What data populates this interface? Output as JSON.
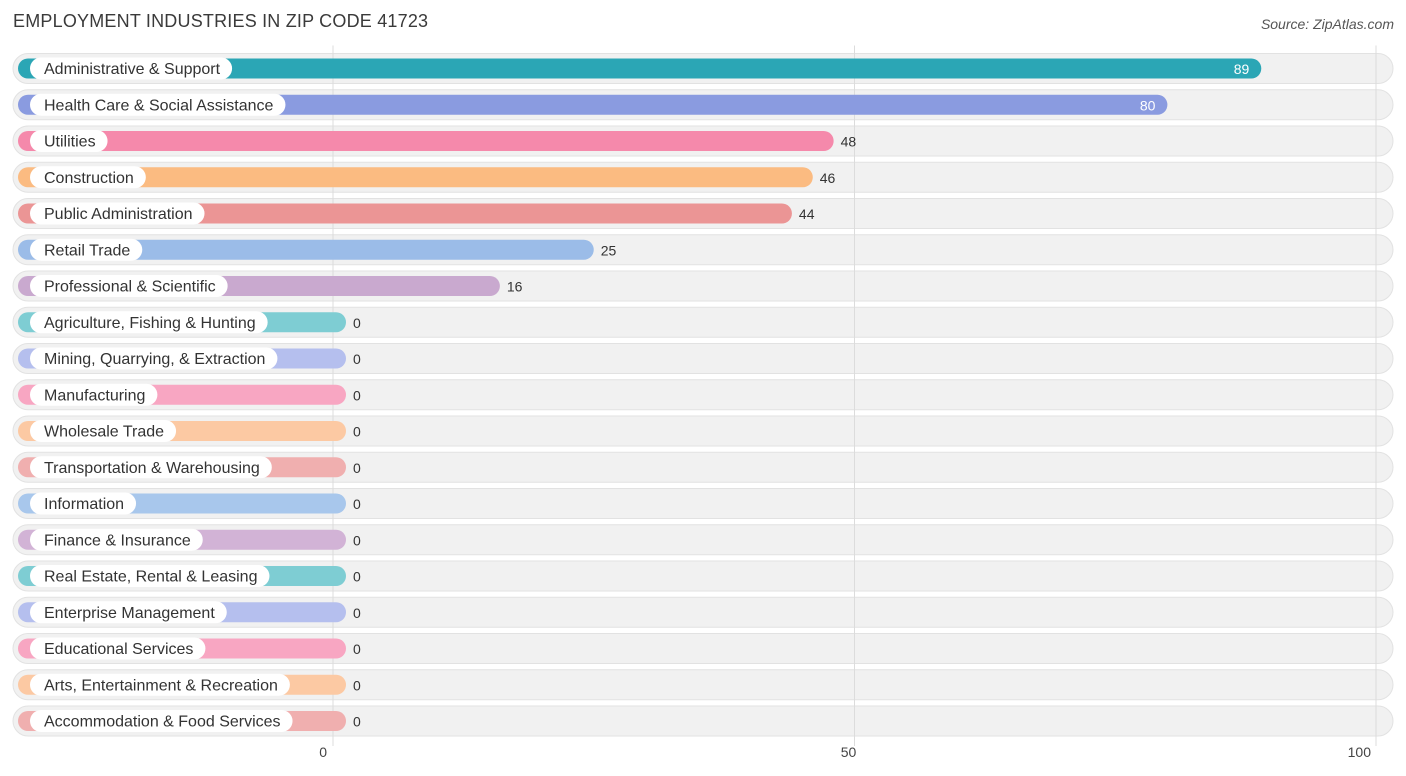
{
  "chart_data": {
    "type": "bar",
    "orientation": "horizontal",
    "title": "EMPLOYMENT INDUSTRIES IN ZIP CODE 41723",
    "source": "Source: ZipAtlas.com",
    "xlim": [
      0,
      100
    ],
    "xticks": [
      0,
      50,
      100
    ],
    "grid": true,
    "categories": [
      "Administrative & Support",
      "Health Care & Social Assistance",
      "Utilities",
      "Construction",
      "Public Administration",
      "Retail Trade",
      "Professional & Scientific",
      "Agriculture, Fishing & Hunting",
      "Mining, Quarrying, & Extraction",
      "Manufacturing",
      "Wholesale Trade",
      "Transportation & Warehousing",
      "Information",
      "Finance & Insurance",
      "Real Estate, Rental & Leasing",
      "Enterprise Management",
      "Educational Services",
      "Arts, Entertainment & Recreation",
      "Accommodation & Food Services"
    ],
    "values": [
      89,
      80,
      48,
      46,
      44,
      25,
      16,
      0,
      0,
      0,
      0,
      0,
      0,
      0,
      0,
      0,
      0,
      0,
      0
    ],
    "colors": [
      "#2ba6b5",
      "#8a9be0",
      "#f589ab",
      "#fbbb81",
      "#eb9595",
      "#9bbce8",
      "#c9a9cf",
      "#7ecdd3",
      "#b5bfee",
      "#f8a6c2",
      "#fcc9a3",
      "#f0afaf",
      "#a8c7ec",
      "#d2b3d6",
      "#7ecdd3",
      "#b5bfee",
      "#f8a6c2",
      "#fcc9a3",
      "#f0afaf"
    ]
  }
}
